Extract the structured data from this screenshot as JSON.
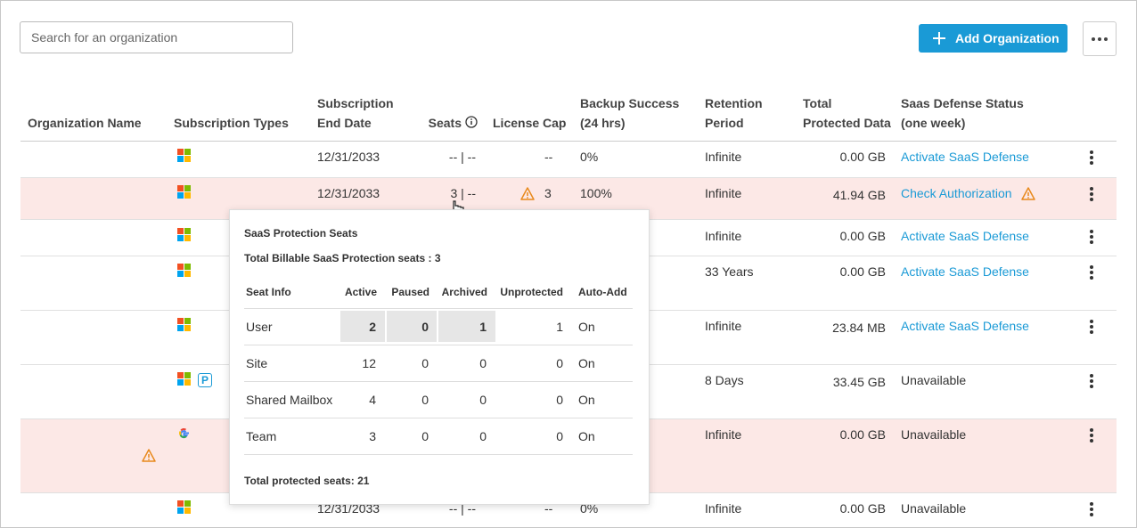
{
  "header": {
    "search_placeholder": "Search for an organization",
    "add_button": "Add Organization"
  },
  "table": {
    "columns": [
      [
        "Organization Name"
      ],
      [
        "Subscription Types"
      ],
      [
        "Subscription",
        "End Date"
      ],
      [
        "Seats"
      ],
      [
        "License Cap"
      ],
      [
        "Backup Success",
        "(24 hrs)"
      ],
      [
        "Retention",
        "Period"
      ],
      [
        "Total",
        "Protected Data"
      ],
      [
        "Saas Defense Status",
        "(one week)"
      ]
    ],
    "rows": [
      {
        "end_date": "12/31/2033",
        "seats": "-- | --",
        "license_cap": "--",
        "backup": "0%",
        "retention": "Infinite",
        "data": "0.00 GB",
        "status": "Activate SaaS Defense"
      },
      {
        "end_date": "12/31/2033",
        "seats": "3 | --",
        "license_cap": "3",
        "backup": "100%",
        "retention": "Infinite",
        "data": "41.94 GB",
        "status": "Check Authorization"
      },
      {
        "retention": "Infinite",
        "data": "0.00 GB",
        "status": "Activate SaaS Defense"
      },
      {
        "retention": "33 Years",
        "data": "0.00 GB",
        "status": "Activate SaaS Defense"
      },
      {
        "retention": "Infinite",
        "data": "23.84 MB",
        "status": "Activate SaaS Defense"
      },
      {
        "badge": "P",
        "retention": "8 Days",
        "data": "33.45 GB",
        "status": "Unavailable"
      },
      {
        "retention": "Infinite",
        "data": "0.00 GB",
        "status": "Unavailable"
      },
      {
        "end_date": "12/31/2033",
        "seats": "-- | --",
        "license_cap": "--",
        "backup": "0%",
        "retention": "Infinite",
        "data": "0.00 GB",
        "status": "Unavailable"
      }
    ]
  },
  "popover": {
    "title": "SaaS Protection Seats",
    "billable": "Total Billable SaaS Protection seats : 3",
    "columns": [
      "Seat Info",
      "Active",
      "Paused",
      "Archived",
      "Unprotected",
      "Auto-Add"
    ],
    "rows": [
      [
        "User",
        2,
        0,
        1,
        1,
        "On"
      ],
      [
        "Site",
        12,
        0,
        0,
        0,
        "On"
      ],
      [
        "Shared Mailbox",
        4,
        0,
        0,
        0,
        "On"
      ],
      [
        "Team",
        3,
        0,
        0,
        0,
        "On"
      ]
    ],
    "footer": "Total protected seats: 21"
  }
}
